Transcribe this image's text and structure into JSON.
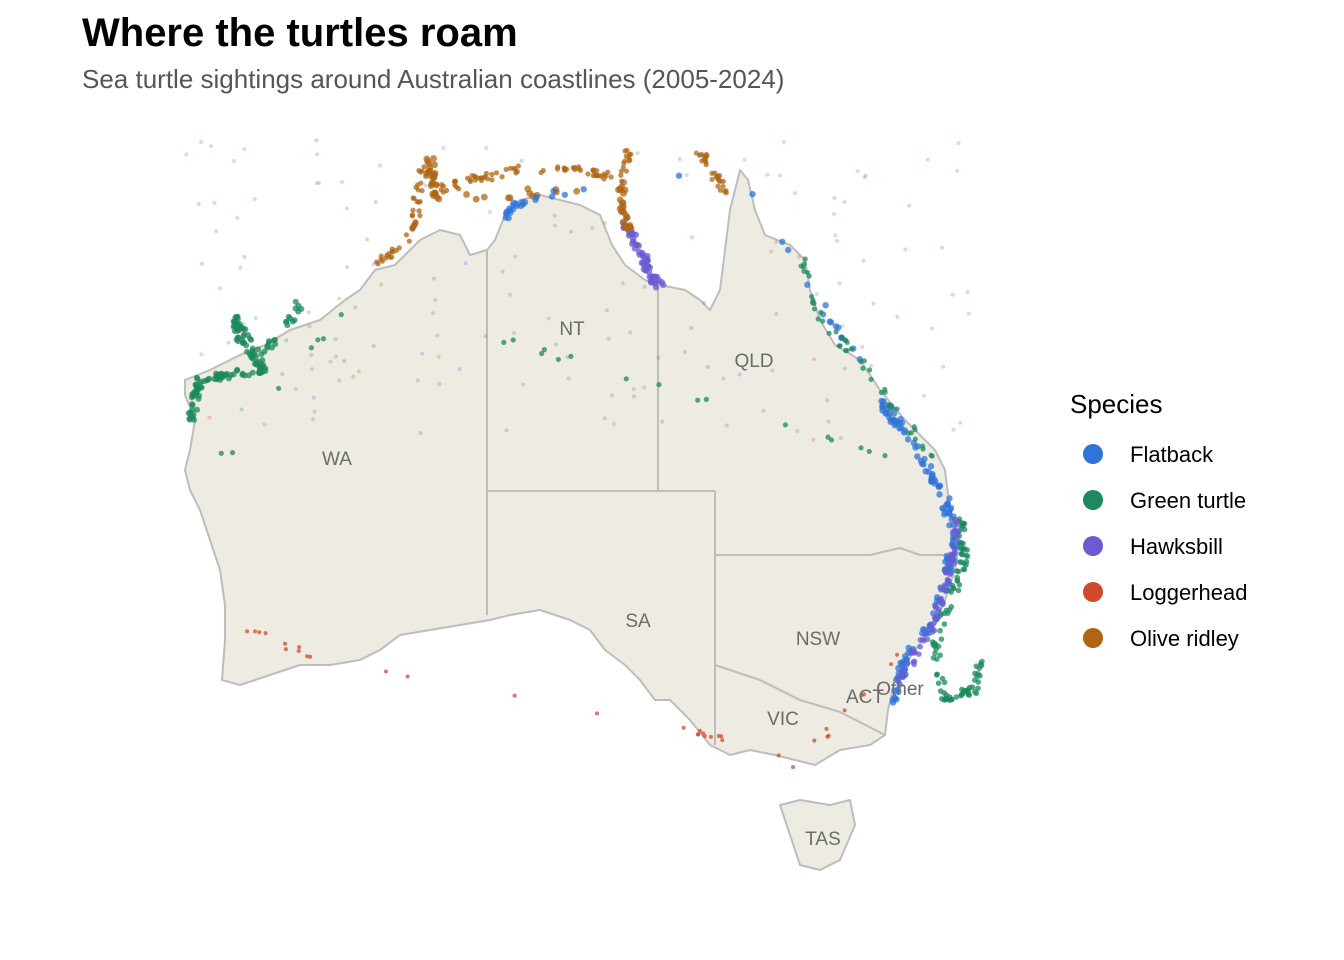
{
  "title": "Where the turtles roam",
  "subtitle": "Sea turtle sightings around Australian coastlines (2005-2024)",
  "regions": [
    "WA",
    "NT",
    "QLD",
    "SA",
    "NSW",
    "VIC",
    "ACT",
    "Other",
    "TAS"
  ],
  "legend": {
    "title": "Species",
    "items": [
      {
        "name": "Flatback",
        "color": "#2e74d9"
      },
      {
        "name": "Green turtle",
        "color": "#1b8a5e"
      },
      {
        "name": "Hawksbill",
        "color": "#6a5bd4"
      },
      {
        "name": "Loggerhead",
        "color": "#d04a2a"
      },
      {
        "name": "Olive ridley",
        "color": "#b06513"
      }
    ]
  }
}
